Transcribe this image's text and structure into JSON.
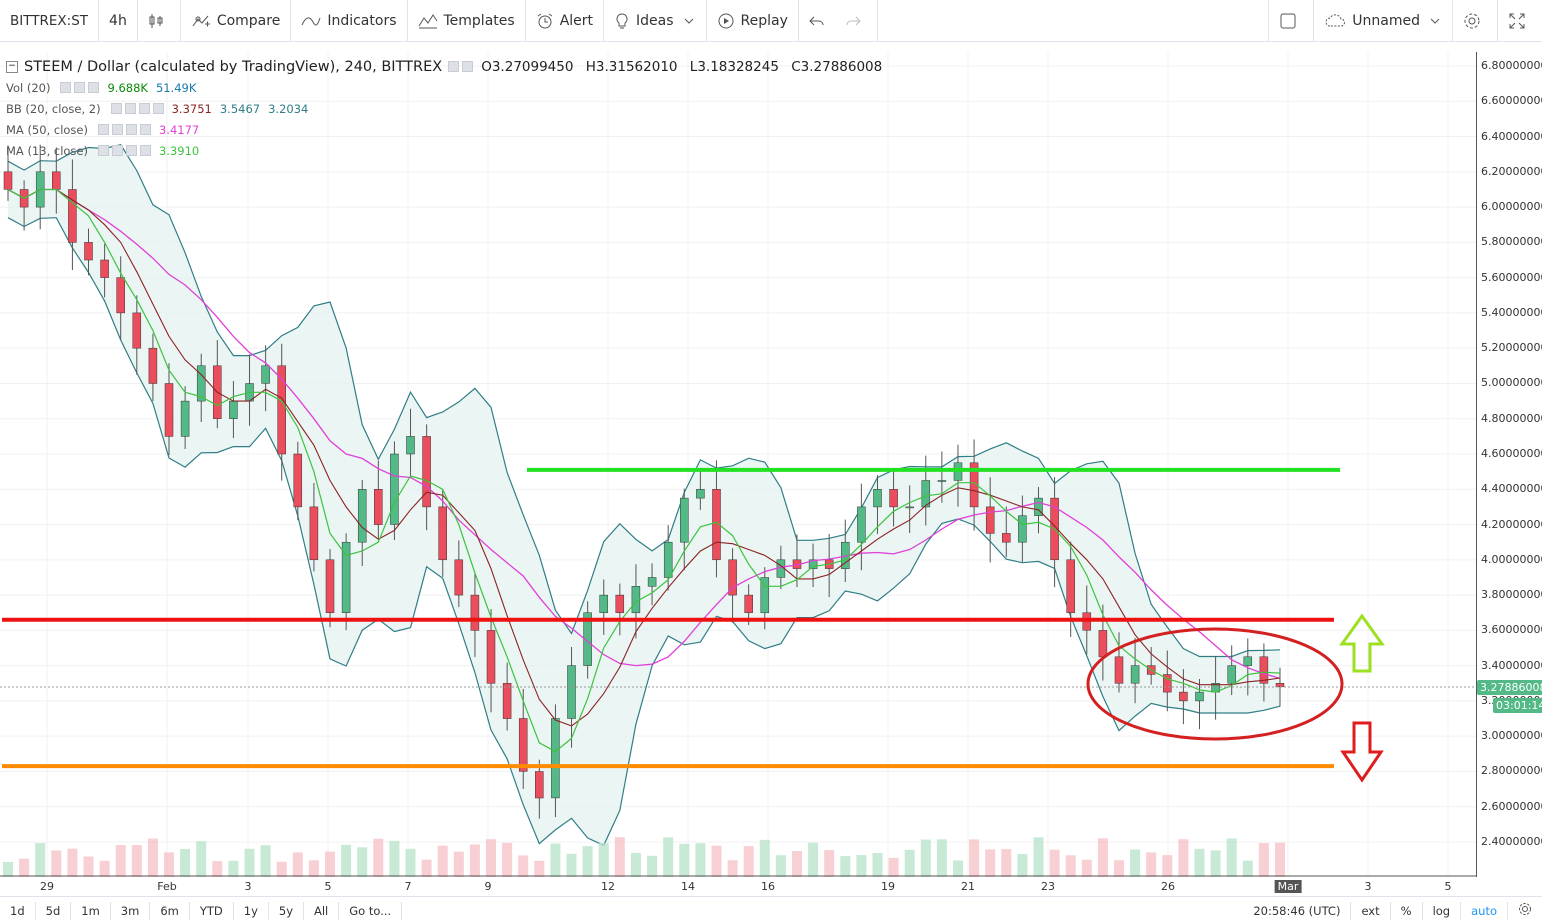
{
  "toolbar": {
    "symbol": "BITTREX:ST",
    "interval": "4h",
    "compare": "Compare",
    "indicators": "Indicators",
    "templates": "Templates",
    "alert": "Alert",
    "ideas": "Ideas",
    "replay": "Replay",
    "layout_name": "Unnamed"
  },
  "legend": {
    "title": "STEEM / Dollar (calculated by TradingView), 240, BITTREX",
    "open": "O3.27099450",
    "high": "H3.31562010",
    "low": "L3.18328245",
    "close": "C3.27886008",
    "vol_label": "Vol (20)",
    "vol_v1": "9.688K",
    "vol_v2": "51.49K",
    "bb_label": "BB (20, close, 2)",
    "bb_v1": "3.3751",
    "bb_v2": "3.5467",
    "bb_v3": "3.2034",
    "ma50_label": "MA (50, close)",
    "ma50_v": "3.4177",
    "ma13_label": "MA (13, close)",
    "ma13_v": "3.3910"
  },
  "price_tag": "3.27886008",
  "countdown": "03:01:14",
  "bottom": {
    "ranges": [
      "1d",
      "5d",
      "1m",
      "3m",
      "6m",
      "YTD",
      "1y",
      "5y",
      "All"
    ],
    "goto": "Go to...",
    "time": "20:58:46 (UTC)",
    "ext": "ext",
    "pct": "%",
    "log": "log",
    "auto": "auto"
  },
  "colors": {
    "up": "#53b987",
    "down": "#eb4d5c",
    "bb_fill": "#e6f2f1",
    "bb_band": "#2f7e86",
    "ma50": "#e040d8",
    "ma13": "#3cc43c",
    "bb_basis": "#8b2323",
    "support_green": "#22e122",
    "level_red": "#ee1111",
    "level_orange": "#ff8c00"
  },
  "chart_data": {
    "type": "candlestick",
    "title": "STEEM / Dollar (calculated by TradingView), 240, BITTREX",
    "ylim": [
      2.3,
      6.9
    ],
    "y_ticks": [
      "6.80000000",
      "6.60000000",
      "6.40000000",
      "6.20000000",
      "6.00000000",
      "5.80000000",
      "5.60000000",
      "5.40000000",
      "5.20000000",
      "5.00000000",
      "4.80000000",
      "4.60000000",
      "4.40000000",
      "4.20000000",
      "4.00000000",
      "3.80000000",
      "3.60000000",
      "3.40000000",
      "3.20000000",
      "3.00000000",
      "2.80000000",
      "2.60000000",
      "2.40000000"
    ],
    "x_ticks": [
      "29",
      "Feb",
      "3",
      "5",
      "7",
      "9",
      "12",
      "14",
      "16",
      "19",
      "21",
      "23",
      "26",
      "Mar",
      "3",
      "5"
    ],
    "close_series": [
      6.1,
      6.0,
      6.2,
      6.1,
      5.8,
      5.7,
      5.6,
      5.4,
      5.2,
      5.0,
      4.7,
      4.9,
      5.1,
      4.8,
      4.9,
      5.0,
      5.1,
      4.6,
      4.3,
      4.0,
      3.7,
      4.1,
      4.4,
      4.2,
      4.6,
      4.7,
      4.3,
      4.0,
      3.8,
      3.6,
      3.3,
      3.1,
      2.8,
      2.65,
      3.1,
      3.4,
      3.7,
      3.8,
      3.7,
      3.85,
      3.9,
      4.1,
      4.35,
      4.4,
      4.0,
      3.8,
      3.7,
      3.9,
      4.0,
      3.95,
      4.0,
      3.95,
      4.1,
      4.3,
      4.4,
      4.3,
      4.3,
      4.45,
      4.45,
      4.55,
      4.3,
      4.15,
      4.1,
      4.25,
      4.35,
      4.0,
      3.7,
      3.6,
      3.45,
      3.3,
      3.4,
      3.35,
      3.25,
      3.2,
      3.25,
      3.3,
      3.4,
      3.45,
      3.3,
      3.28
    ],
    "horizontal_levels": [
      4.51,
      3.66,
      2.83
    ],
    "last_price": 3.27886008
  }
}
